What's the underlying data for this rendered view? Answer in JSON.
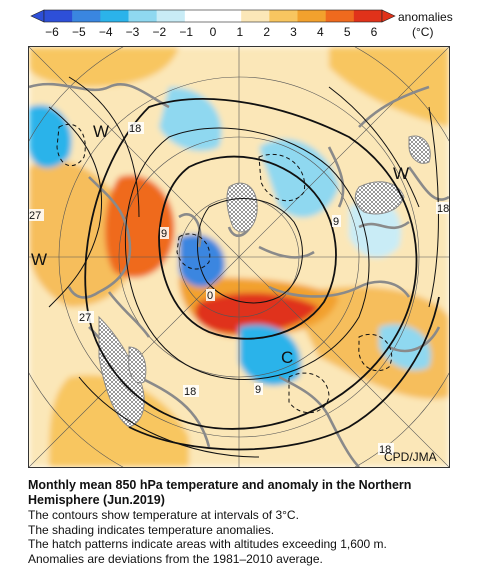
{
  "colorbar": {
    "ticks": [
      "−6",
      "−5",
      "−4",
      "−3",
      "−2",
      "−1",
      "0",
      "1",
      "2",
      "3",
      "4",
      "5",
      "6"
    ],
    "label_line1": "anomalies",
    "label_line2": "(°C)",
    "colors": [
      "#2d4fd8",
      "#3a86e0",
      "#2bb3ea",
      "#8fd8f0",
      "#c9ecf6",
      "#ffffff",
      "#ffffff",
      "#fbe7b8",
      "#f8c660",
      "#f2a12d",
      "#ef6a1e",
      "#e0321a"
    ]
  },
  "map": {
    "centers": [
      {
        "label": "W"
      },
      {
        "label": "W"
      },
      {
        "label": "W"
      },
      {
        "label": "C"
      }
    ],
    "contour_labels": [
      "27",
      "27",
      "18",
      "18",
      "18",
      "18",
      "9",
      "9",
      "9",
      "0"
    ],
    "credit": "CPD/JMA"
  },
  "caption": {
    "title_line1": "Monthly mean 850 hPa temperature and anomaly in the Northern",
    "title_line2": "Hemisphere (Jun.2019)",
    "lines": [
      "The contours show temperature at intervals of 3°C.",
      "The shading indicates temperature anomalies.",
      "The hatch patterns indicate areas with altitudes exceeding 1,600 m.",
      "Anomalies are deviations from the 1981–2010 average."
    ]
  }
}
